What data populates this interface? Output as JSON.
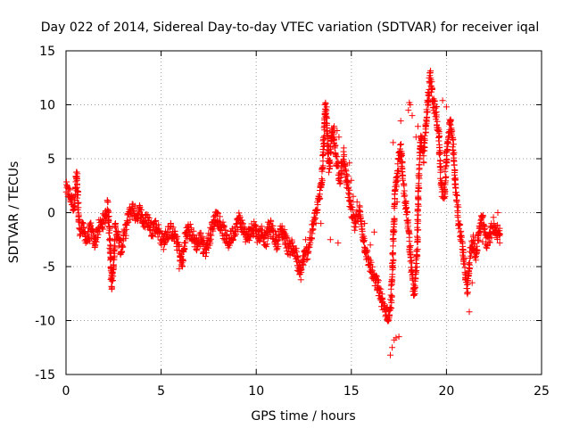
{
  "chart_data": {
    "type": "scatter",
    "title": "Day 022 of 2014, Sidereal Day-to-day VTEC variation (SDTVAR) for receiver iqal",
    "xlabel": "GPS time / hours",
    "ylabel": "SDTVAR / TECUs",
    "xlim": [
      0,
      25
    ],
    "ylim": [
      -15,
      15
    ],
    "x_ticks": [
      0,
      5,
      10,
      15,
      20,
      25
    ],
    "y_ticks": [
      -15,
      -10,
      -5,
      0,
      5,
      10,
      15
    ],
    "x_tick_labels": [
      "0",
      "5",
      "10",
      "15",
      "20",
      "25"
    ],
    "y_tick_labels": [
      "-15",
      "-10",
      "-5",
      "0",
      "5",
      "10",
      "15"
    ],
    "grid": true,
    "marker": "+",
    "color": "#ff0000",
    "series": [
      {
        "name": "SDTVAR",
        "trace": [
          [
            0.0,
            2.2
          ],
          [
            0.2,
            1.6
          ],
          [
            0.4,
            0.6
          ],
          [
            0.5,
            2.0
          ],
          [
            0.55,
            3.5
          ],
          [
            0.7,
            -1.4
          ],
          [
            0.9,
            -1.6
          ],
          [
            1.1,
            -2.5
          ],
          [
            1.3,
            -1.5
          ],
          [
            1.5,
            -2.8
          ],
          [
            1.7,
            -1.5
          ],
          [
            1.9,
            -1.0
          ],
          [
            2.05,
            -0.5
          ],
          [
            2.2,
            0.8
          ],
          [
            2.3,
            -2.0
          ],
          [
            2.4,
            -6.8
          ],
          [
            2.5,
            -4.5
          ],
          [
            2.6,
            -1.3
          ],
          [
            2.75,
            -2.5
          ],
          [
            2.9,
            -3.5
          ],
          [
            3.1,
            -1.8
          ],
          [
            3.3,
            -0.2
          ],
          [
            3.5,
            0.4
          ],
          [
            3.7,
            -0.3
          ],
          [
            3.9,
            0.2
          ],
          [
            4.1,
            -1.0
          ],
          [
            4.3,
            -0.6
          ],
          [
            4.5,
            -1.6
          ],
          [
            4.7,
            -1.2
          ],
          [
            4.9,
            -1.8
          ],
          [
            5.1,
            -2.8
          ],
          [
            5.3,
            -2.0
          ],
          [
            5.5,
            -1.6
          ],
          [
            5.7,
            -2.2
          ],
          [
            5.9,
            -3.0
          ],
          [
            6.1,
            -4.8
          ],
          [
            6.3,
            -2.0
          ],
          [
            6.5,
            -1.6
          ],
          [
            6.7,
            -2.4
          ],
          [
            6.9,
            -3.0
          ],
          [
            7.1,
            -2.2
          ],
          [
            7.3,
            -3.5
          ],
          [
            7.5,
            -2.6
          ],
          [
            7.7,
            -1.2
          ],
          [
            7.9,
            -0.2
          ],
          [
            8.1,
            -1.0
          ],
          [
            8.3,
            -1.8
          ],
          [
            8.5,
            -2.8
          ],
          [
            8.7,
            -2.2
          ],
          [
            8.9,
            -1.4
          ],
          [
            9.1,
            -0.6
          ],
          [
            9.3,
            -1.4
          ],
          [
            9.5,
            -2.4
          ],
          [
            9.7,
            -1.8
          ],
          [
            9.9,
            -1.2
          ],
          [
            10.1,
            -2.2
          ],
          [
            10.3,
            -1.8
          ],
          [
            10.5,
            -2.6
          ],
          [
            10.7,
            -1.2
          ],
          [
            10.9,
            -2.0
          ],
          [
            11.1,
            -2.8
          ],
          [
            11.3,
            -1.6
          ],
          [
            11.5,
            -2.2
          ],
          [
            11.7,
            -3.4
          ],
          [
            11.9,
            -3.0
          ],
          [
            12.1,
            -4.0
          ],
          [
            12.3,
            -5.8
          ],
          [
            12.5,
            -4.2
          ],
          [
            12.7,
            -3.6
          ],
          [
            12.9,
            -2.0
          ],
          [
            13.1,
            -0.5
          ],
          [
            13.3,
            1.2
          ],
          [
            13.45,
            3.2
          ],
          [
            13.55,
            6.8
          ],
          [
            13.65,
            9.8
          ],
          [
            13.75,
            6.5
          ],
          [
            13.85,
            4.2
          ],
          [
            14.0,
            7.6
          ],
          [
            14.2,
            5.2
          ],
          [
            14.4,
            3.2
          ],
          [
            14.6,
            5.0
          ],
          [
            14.8,
            2.6
          ],
          [
            15.0,
            0.0
          ],
          [
            15.2,
            -1.2
          ],
          [
            15.4,
            0.3
          ],
          [
            15.6,
            -2.0
          ],
          [
            15.8,
            -4.0
          ],
          [
            16.0,
            -5.0
          ],
          [
            16.2,
            -6.2
          ],
          [
            16.4,
            -6.8
          ],
          [
            16.6,
            -8.2
          ],
          [
            16.8,
            -9.2
          ],
          [
            17.0,
            -9.6
          ],
          [
            17.1,
            -8.0
          ],
          [
            17.2,
            -3.0
          ],
          [
            17.3,
            2.0
          ],
          [
            17.45,
            4.5
          ],
          [
            17.6,
            6.0
          ],
          [
            17.7,
            3.2
          ],
          [
            17.85,
            1.0
          ],
          [
            18.0,
            -1.5
          ],
          [
            18.15,
            -5.0
          ],
          [
            18.3,
            -7.5
          ],
          [
            18.45,
            -4.0
          ],
          [
            18.55,
            3.0
          ],
          [
            18.65,
            7.0
          ],
          [
            18.8,
            5.2
          ],
          [
            18.95,
            8.5
          ],
          [
            19.05,
            11.0
          ],
          [
            19.15,
            12.8
          ],
          [
            19.3,
            10.0
          ],
          [
            19.45,
            9.4
          ],
          [
            19.6,
            7.0
          ],
          [
            19.75,
            2.0
          ],
          [
            19.9,
            1.8
          ],
          [
            20.05,
            6.5
          ],
          [
            20.2,
            8.5
          ],
          [
            20.35,
            6.0
          ],
          [
            20.5,
            2.0
          ],
          [
            20.65,
            -1.0
          ],
          [
            20.8,
            -2.5
          ],
          [
            20.95,
            -5.0
          ],
          [
            21.1,
            -7.0
          ],
          [
            21.25,
            -4.0
          ],
          [
            21.4,
            -2.5
          ],
          [
            21.55,
            -4.0
          ],
          [
            21.7,
            -2.0
          ],
          [
            21.85,
            -0.5
          ],
          [
            22.0,
            -1.5
          ],
          [
            22.15,
            -3.0
          ],
          [
            22.3,
            -2.0
          ],
          [
            22.5,
            -1.0
          ],
          [
            22.7,
            -2.0
          ],
          [
            22.85,
            -1.5
          ]
        ],
        "extra_points": [
          [
            13.6,
            10.0
          ],
          [
            13.7,
            9.8
          ],
          [
            14.1,
            8.0
          ],
          [
            14.25,
            7.6
          ],
          [
            14.35,
            7.0
          ],
          [
            14.6,
            6.0
          ],
          [
            14.9,
            4.6
          ],
          [
            15.0,
            3.0
          ],
          [
            15.1,
            1.5
          ],
          [
            13.2,
            0.0
          ],
          [
            13.4,
            -1.0
          ],
          [
            13.9,
            -2.5
          ],
          [
            14.3,
            -2.8
          ],
          [
            15.05,
            0.5
          ],
          [
            15.3,
            1.0
          ],
          [
            15.5,
            -0.5
          ],
          [
            17.05,
            -13.2
          ],
          [
            17.15,
            -12.5
          ],
          [
            17.25,
            -11.8
          ],
          [
            17.35,
            -11.6
          ],
          [
            17.5,
            -11.5
          ],
          [
            16.65,
            -9.0
          ],
          [
            16.9,
            -9.8
          ],
          [
            17.0,
            -9.6
          ],
          [
            18.0,
            9.5
          ],
          [
            18.05,
            10.2
          ],
          [
            18.1,
            10.0
          ],
          [
            18.2,
            9.0
          ],
          [
            19.8,
            10.4
          ],
          [
            20.0,
            9.8
          ],
          [
            20.1,
            7.0
          ],
          [
            19.9,
            5.5
          ],
          [
            19.1,
            10.8
          ],
          [
            18.5,
            8.0
          ],
          [
            18.4,
            7.0
          ],
          [
            21.2,
            -9.2
          ],
          [
            21.35,
            -6.5
          ],
          [
            21.9,
            -2.7
          ],
          [
            22.7,
            0.0
          ],
          [
            22.8,
            -2.8
          ],
          [
            17.4,
            1.0
          ],
          [
            17.6,
            8.5
          ],
          [
            17.2,
            6.5
          ],
          [
            16.2,
            -1.8
          ],
          [
            16.0,
            -3.0
          ],
          [
            15.7,
            -1.0
          ],
          [
            12.45,
            -4.0
          ],
          [
            12.6,
            -2.5
          ],
          [
            12.8,
            -3.2
          ],
          [
            11.9,
            -3.6
          ],
          [
            5.95,
            -5.2
          ],
          [
            6.0,
            -4.5
          ],
          [
            7.2,
            -3.8
          ],
          [
            7.0,
            -2.8
          ],
          [
            2.35,
            -6.2
          ],
          [
            2.45,
            -5.5
          ],
          [
            0.6,
            3.6
          ],
          [
            1.0,
            -2.6
          ]
        ]
      }
    ]
  }
}
